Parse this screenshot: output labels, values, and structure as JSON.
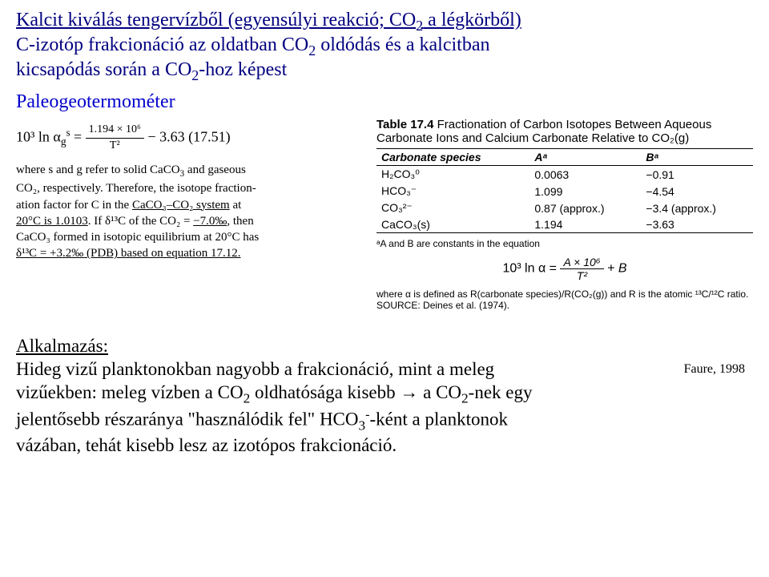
{
  "title": {
    "line1_a": "Kalcit kiválás tengervízből (egyensúlyi reakció; CO",
    "line1_sub": "2",
    "line1_b": " a légkörből)",
    "line2_a": "C-izotóp frakcionáció az oldatban CO",
    "line2_sub": "2",
    "line2_b": " oldódás és a kalcitban",
    "line3_a": "kicsapódás során a CO",
    "line3_sub": "2",
    "line3_b": "-hoz képest"
  },
  "paleo": "Paleogeotermométer",
  "left": {
    "eq_lhs": "10³ ln α",
    "eq_sub": "g",
    "eq_sup": "s",
    "eq_eq": " = ",
    "eq_frac_num": "1.194 × 10⁶",
    "eq_frac_den": "T²",
    "eq_tail": " − 3.63     (17.51)",
    "p1a": "where s and g refer to solid CaCO",
    "p1b": " and gaseous",
    "p2": "CO₂, respectively. Therefore, the isotope fraction-",
    "p3a": "ation factor for C in the ",
    "p3b": "CaCO₃–CO₂ system",
    "p3c": " at",
    "p4a": "20°C is 1.0103",
    "p4b": ". If δ¹³C of the CO₂ = ",
    "p4c": "−7.0‰",
    "p4d": ", then",
    "p5a": "CaCO₃ formed in isotopic equilibrium at 20°C has",
    "p6": "δ¹³C = +3.2‰ (PDB) based on equation 17.12."
  },
  "table": {
    "title_a": "Table 17.4",
    "title_b": "Fractionation of Carbon Isotopes Between Aqueous Carbonate Ions and Calcium Carbonate Relative to CO₂(g)",
    "head_species": "Carbonate species",
    "head_A": "Aᵃ",
    "head_B": "Bᵃ",
    "rows": [
      {
        "sp": "H₂CO₃⁰",
        "A": "0.0063",
        "B": "−0.91"
      },
      {
        "sp": "HCO₃⁻",
        "A": "1.099",
        "B": "−4.54"
      },
      {
        "sp": "CO₃²⁻",
        "A": "0.87 (approx.)",
        "B": "−3.4 (approx.)"
      },
      {
        "sp": "CaCO₃(s)",
        "A": "1.194",
        "B": "−3.63"
      }
    ],
    "note": "ᵃA and B are constants in the equation",
    "eq_lhs": "10³ ln α = ",
    "eq_num": "A × 10⁶",
    "eq_den": "T²",
    "eq_plus": " + B",
    "def": "where α is defined as R(carbonate species)/R(CO₂(g)) and R is the atomic ¹³C/¹²C ratio.",
    "source_label": "SOURCE:",
    "source_val": " Deines et al. (1974)."
  },
  "faure": "Faure, 1998",
  "alk": {
    "title": "Alkalmazás:",
    "l1": "Hideg vizű planktonokban nagyobb a frakcionáció, mint a meleg",
    "l2a": "vizűekben: meleg vízben a CO",
    "l2b": " oldhatósága kisebb ",
    "arrow": "→",
    "l2c": " a CO",
    "l2d": "-nek egy",
    "l3a": "jelentősebb részaránya \"használódik fel\" HCO",
    "l3sub": "3",
    "l3sup": "-",
    "l3b": "-ként a planktonok",
    "l4": "vázában, tehát kisebb lesz az izotópos frakcionáció."
  },
  "colors": {
    "navy": "#000080",
    "blue": "#0000cc"
  }
}
